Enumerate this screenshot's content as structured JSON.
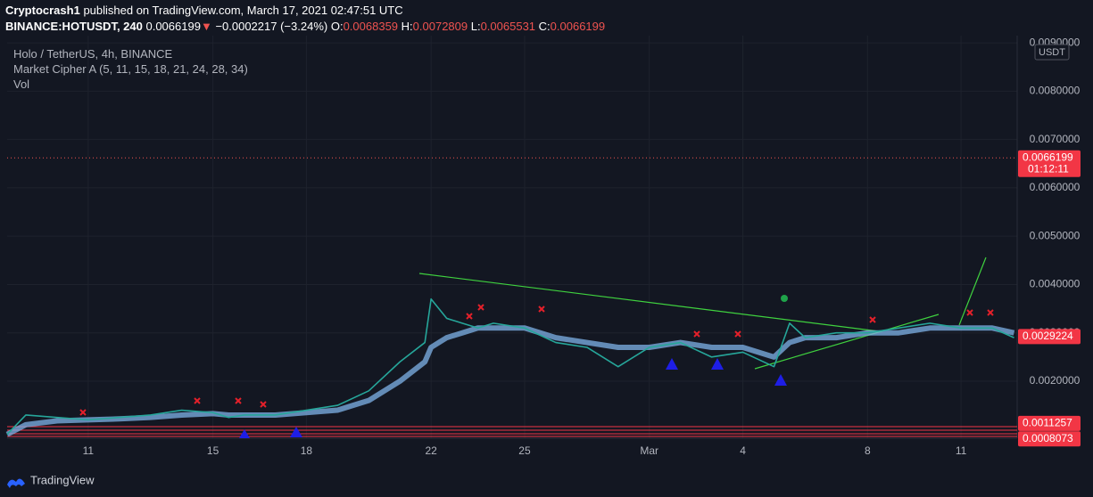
{
  "header": {
    "publisher": "Cryptocrash1",
    "published": "published on TradingView.com, March 17, 2021 02:47:51 UTC",
    "symbol": "BINANCE:HOTUSDT, 240",
    "last": "0.0066199",
    "arrow": "▼",
    "change": "−0.0002217 (−3.24%)",
    "ohlc": [
      {
        "key": "O:",
        "value": "0.0068359"
      },
      {
        "key": "H:",
        "value": "0.0072809"
      },
      {
        "key": "L:",
        "value": "0.0065531"
      },
      {
        "key": "C:",
        "value": "0.0066199"
      }
    ]
  },
  "legend": {
    "title": "Holo / TetherUS, 4h, BINANCE",
    "indicator": "Market Cipher A (5, 11, 15, 18, 21, 24, 28, 34)",
    "volume": "Vol"
  },
  "chart_data": {
    "type": "line",
    "x": [
      0.4,
      1,
      2,
      3,
      4,
      5,
      6,
      7,
      7.5,
      8,
      9,
      10,
      11,
      12,
      13,
      13.8,
      14,
      14.5,
      15,
      15.5,
      16,
      17,
      18,
      19,
      20,
      21,
      22,
      23,
      24,
      25,
      25.5,
      26,
      27,
      28,
      29,
      30,
      31,
      32,
      32.7
    ],
    "series": [
      {
        "color": "#7fb3e8",
        "values": [
          0.0009,
          0.0011,
          0.00118,
          0.0012,
          0.00122,
          0.00125,
          0.0013,
          0.00133,
          0.0013,
          0.0013,
          0.0013,
          0.00135,
          0.0014,
          0.0016,
          0.002,
          0.0024,
          0.0027,
          0.0029,
          0.003,
          0.0031,
          0.0031,
          0.0031,
          0.0029,
          0.0028,
          0.0027,
          0.0027,
          0.0028,
          0.0027,
          0.0027,
          0.0025,
          0.0028,
          0.0029,
          0.0029,
          0.003,
          0.003,
          0.0031,
          0.0031,
          0.0031,
          0.003
        ]
      },
      {
        "color": "#26a69a",
        "values": [
          0.0009,
          0.0013,
          0.00125,
          0.0012,
          0.00125,
          0.0013,
          0.0014,
          0.00135,
          0.00125,
          0.0013,
          0.0013,
          0.0014,
          0.0015,
          0.0018,
          0.0024,
          0.0028,
          0.0037,
          0.0033,
          0.0032,
          0.0031,
          0.0032,
          0.0031,
          0.0028,
          0.0027,
          0.0023,
          0.0027,
          0.0028,
          0.0025,
          0.0026,
          0.0023,
          0.0032,
          0.0029,
          0.003,
          0.003,
          0.0031,
          0.0032,
          0.0031,
          0.0031,
          0.0029
        ]
      }
    ],
    "xlim": [
      0.4,
      32.8
    ],
    "xticks": [
      {
        "value": 3,
        "label": "11"
      },
      {
        "value": 7,
        "label": "15"
      },
      {
        "value": 10,
        "label": "18"
      },
      {
        "value": 14,
        "label": "22"
      },
      {
        "value": 17,
        "label": "25"
      },
      {
        "value": 21,
        "label": "Mar"
      },
      {
        "value": 24,
        "label": "4"
      },
      {
        "value": 28,
        "label": "8"
      },
      {
        "value": 31,
        "label": "11"
      }
    ],
    "ylim": [
      0.00082,
      0.00915
    ],
    "yticks": [
      {
        "value": 0.002,
        "label": "0.0020000"
      },
      {
        "value": 0.003,
        "label": "0.0030000"
      },
      {
        "value": 0.004,
        "label": "0.0040000"
      },
      {
        "value": 0.005,
        "label": "0.0050000"
      },
      {
        "value": 0.006,
        "label": "0.0060000"
      },
      {
        "value": 0.007,
        "label": "0.0070000"
      },
      {
        "value": 0.008,
        "label": "0.0080000"
      },
      {
        "value": 0.009,
        "label": "0.0090000"
      }
    ],
    "grid": true,
    "unit": "USDT",
    "price_labels": [
      {
        "value": 0.0066199,
        "label": "0.0066199"
      },
      {
        "value": 0.0029224,
        "label": "0.0029224"
      },
      {
        "value": 0.0011257,
        "label": "0.0011257"
      },
      {
        "value": 0.0008073,
        "label": "0.0008073"
      }
    ],
    "countdown": "01:12:11"
  },
  "footer": {
    "brand": "TradingView"
  }
}
